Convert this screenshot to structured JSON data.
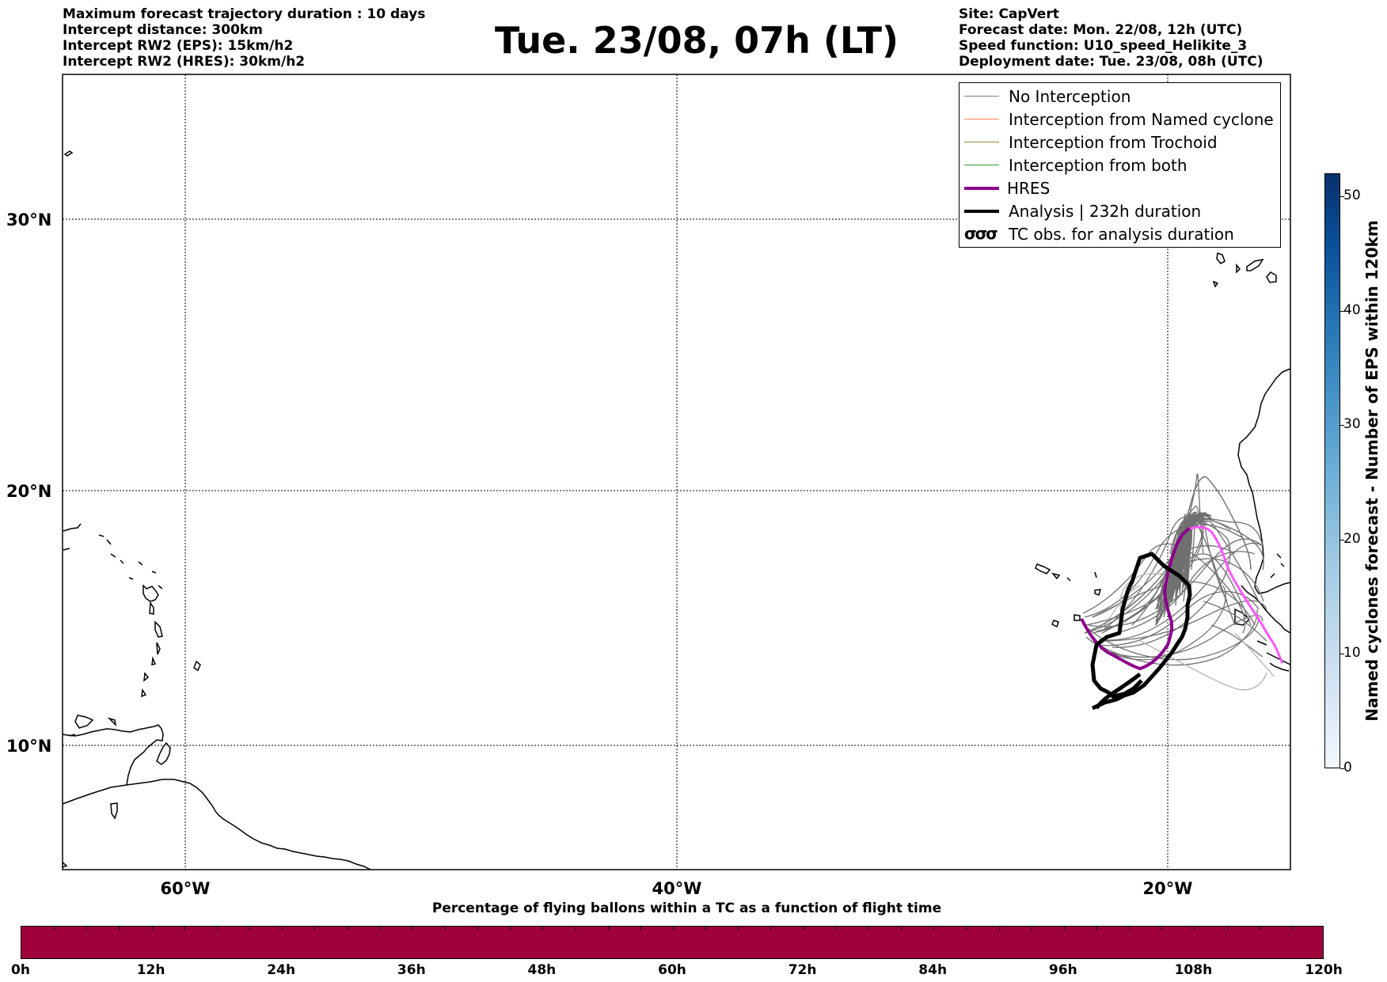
{
  "header": {
    "left_lines": [
      "Maximum forecast trajectory duration : 10 days",
      "Intercept distance: 300km",
      "Intercept RW2 (EPS):  15km/h2",
      "Intercept RW2 (HRES): 30km/h2"
    ],
    "title": "Tue. 23/08, 07h (LT)",
    "right_lines": [
      "Site: CapVert",
      "Forecast date: Mon. 22/08, 12h (UTC)",
      "Speed function: U10_speed_Helikite_3",
      "Deployment date: Tue. 23/08, 08h (UTC)"
    ]
  },
  "map": {
    "lat_labels": [
      "30°N",
      "20°N",
      "10°N"
    ],
    "lon_labels": [
      "60°W",
      "40°W",
      "20°W"
    ],
    "lat_values": [
      30,
      20,
      10
    ],
    "lon_values": [
      -60,
      -40,
      -20
    ],
    "extent": {
      "lon_min": -65,
      "lon_max": -15,
      "lat_min": 5.4,
      "lat_max": 34.6
    }
  },
  "legend": {
    "items": [
      {
        "label": "No Interception",
        "color": "#808080",
        "style": "thin"
      },
      {
        "label": "Interception from Named cyclone",
        "color": "#ff7f50",
        "style": "thin"
      },
      {
        "label": "Interception from Trochoid",
        "color": "#9a8a3a",
        "style": "thin"
      },
      {
        "label": "Interception from both",
        "color": "#2ca02c",
        "style": "thin"
      },
      {
        "label": "HRES",
        "color": "#8b008b",
        "style": "thick"
      },
      {
        "label": "Analysis | 232h duration",
        "color": "#000000",
        "style": "thick"
      },
      {
        "label": "TC obs. for analysis duration",
        "color": "#000000",
        "style": "glyph",
        "glyph": "σσσ"
      }
    ]
  },
  "colorbar_right": {
    "label": "Named cyclones forecast - Number of EPS within 120km",
    "ticks": [
      "0",
      "10",
      "20",
      "30",
      "40",
      "50"
    ],
    "max": 52
  },
  "colorbar_bottom": {
    "title": "Percentage of flying ballons within a TC as a function of flight time",
    "ticks": [
      "0h",
      "12h",
      "24h",
      "36h",
      "48h",
      "60h",
      "72h",
      "84h",
      "96h",
      "108h",
      "120h"
    ],
    "fill_color": "#9d003a"
  }
}
